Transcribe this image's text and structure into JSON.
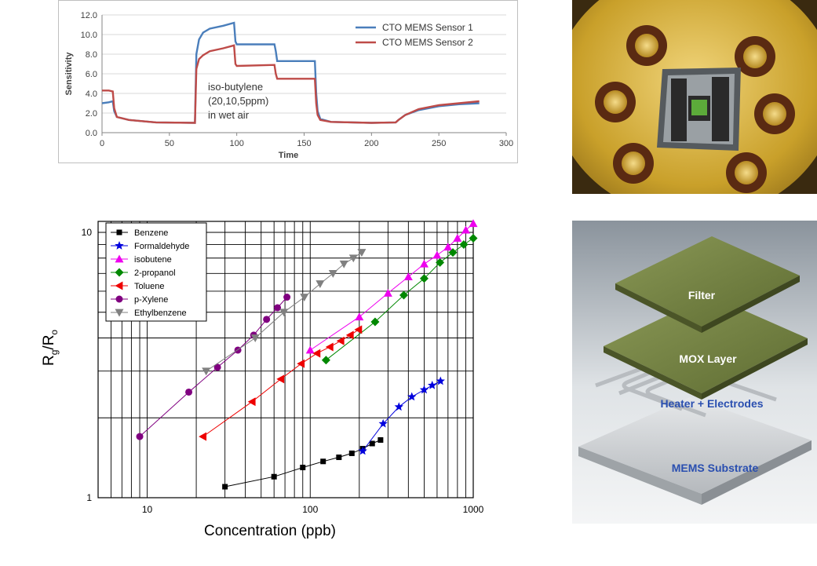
{
  "colors": {
    "sensor1": "#4a7ebb",
    "sensor2": "#be4b48",
    "benzene": "#000000",
    "formaldehyde": "#0000dd",
    "isobutene": "#ee00ee",
    "propanol": "#008800",
    "toluene": "#ee0000",
    "xylene": "#800080",
    "ethylbenzene": "#808080",
    "gold": "#c9a02a",
    "layer_green": "#6f7f3f"
  },
  "chart_data": [
    {
      "type": "line",
      "xlabel": "Time",
      "ylabel": "Sensitivity",
      "xlim": [
        0,
        300
      ],
      "ylim": [
        0,
        12
      ],
      "x_ticks": [
        "0",
        "50",
        "100",
        "150",
        "200",
        "250",
        "300"
      ],
      "y_ticks": [
        "0.0",
        "2.0",
        "4.0",
        "6.0",
        "8.0",
        "10.0",
        "12.0"
      ],
      "grid": true,
      "legend_position": "top-right",
      "annotation": [
        "iso-butylene",
        "(20,10,5ppm)",
        "in wet air"
      ],
      "series": [
        {
          "name": "CTO MEMS Sensor 1",
          "color_key": "sensor1",
          "points": [
            [
              0,
              3.0
            ],
            [
              5,
              3.1
            ],
            [
              8,
              3.2
            ],
            [
              9,
              2.2
            ],
            [
              11,
              1.6
            ],
            [
              20,
              1.3
            ],
            [
              40,
              1.05
            ],
            [
              69,
              1.0
            ],
            [
              70,
              8.0
            ],
            [
              72,
              9.5
            ],
            [
              75,
              10.2
            ],
            [
              80,
              10.6
            ],
            [
              90,
              10.9
            ],
            [
              98,
              11.2
            ],
            [
              99,
              9.3
            ],
            [
              100,
              9.0
            ],
            [
              128,
              9.0
            ],
            [
              129,
              8.3
            ],
            [
              130,
              7.3
            ],
            [
              158,
              7.3
            ],
            [
              159,
              4.0
            ],
            [
              160,
              2.2
            ],
            [
              162,
              1.4
            ],
            [
              170,
              1.1
            ],
            [
              200,
              1.0
            ],
            [
              218,
              1.05
            ],
            [
              220,
              1.3
            ],
            [
              225,
              1.8
            ],
            [
              235,
              2.3
            ],
            [
              250,
              2.7
            ],
            [
              265,
              2.9
            ],
            [
              280,
              3.0
            ]
          ]
        },
        {
          "name": "CTO MEMS Sensor 2",
          "color_key": "sensor2",
          "points": [
            [
              0,
              4.3
            ],
            [
              5,
              4.3
            ],
            [
              8,
              4.2
            ],
            [
              9,
              2.5
            ],
            [
              11,
              1.6
            ],
            [
              20,
              1.3
            ],
            [
              40,
              1.05
            ],
            [
              69,
              1.0
            ],
            [
              70,
              6.5
            ],
            [
              72,
              7.5
            ],
            [
              75,
              7.9
            ],
            [
              80,
              8.3
            ],
            [
              90,
              8.6
            ],
            [
              98,
              8.9
            ],
            [
              99,
              7.0
            ],
            [
              100,
              6.8
            ],
            [
              128,
              6.9
            ],
            [
              129,
              6.0
            ],
            [
              130,
              5.5
            ],
            [
              158,
              5.5
            ],
            [
              159,
              3.0
            ],
            [
              160,
              1.8
            ],
            [
              162,
              1.3
            ],
            [
              170,
              1.1
            ],
            [
              200,
              1.0
            ],
            [
              218,
              1.05
            ],
            [
              220,
              1.3
            ],
            [
              225,
              1.8
            ],
            [
              235,
              2.4
            ],
            [
              250,
              2.8
            ],
            [
              265,
              3.0
            ],
            [
              280,
              3.2
            ]
          ]
        }
      ]
    },
    {
      "type": "scatter",
      "xlabel": "Concentration (ppb)",
      "ylabel_main": "R",
      "ylabel_sub1": "g",
      "ylabel_mid": "/R",
      "ylabel_sub2": "o",
      "x_scale": "log",
      "y_scale": "log",
      "xlim": [
        5,
        1000
      ],
      "ylim": [
        1,
        11
      ],
      "x_tick_labels": [
        "10",
        "100",
        "1000"
      ],
      "y_tick_labels": [
        "1",
        "10"
      ],
      "grid": true,
      "legend_position": "top-left",
      "series": [
        {
          "name": "Benzene",
          "marker": "square",
          "color_key": "benzene",
          "x": [
            30,
            60,
            90,
            120,
            150,
            180,
            210,
            240,
            270
          ],
          "y": [
            1.1,
            1.2,
            1.3,
            1.37,
            1.42,
            1.47,
            1.53,
            1.6,
            1.65
          ]
        },
        {
          "name": "Formaldehyde",
          "marker": "star",
          "color_key": "formaldehyde",
          "x": [
            210,
            280,
            350,
            420,
            500,
            560,
            630
          ],
          "y": [
            1.5,
            1.9,
            2.2,
            2.4,
            2.55,
            2.65,
            2.75
          ]
        },
        {
          "name": "isobutene",
          "marker": "triangle-up",
          "color_key": "isobutene",
          "x": [
            100,
            200,
            300,
            400,
            500,
            600,
            700,
            800,
            900,
            1000
          ],
          "y": [
            3.6,
            4.8,
            5.9,
            6.8,
            7.6,
            8.2,
            8.8,
            9.5,
            10.2,
            10.8
          ]
        },
        {
          "name": "2-propanol",
          "marker": "diamond",
          "color_key": "propanol",
          "x": [
            125,
            250,
            375,
            500,
            625,
            750,
            875,
            1000
          ],
          "y": [
            3.3,
            4.6,
            5.8,
            6.7,
            7.7,
            8.4,
            9.0,
            9.5
          ]
        },
        {
          "name": "Toluene",
          "marker": "triangle-left",
          "color_key": "toluene",
          "x": [
            22,
            44,
            66,
            88,
            110,
            132,
            154,
            176,
            198
          ],
          "y": [
            1.7,
            2.3,
            2.8,
            3.2,
            3.5,
            3.7,
            3.9,
            4.1,
            4.3
          ]
        },
        {
          "name": "p-Xylene",
          "marker": "circle",
          "color_key": "xylene",
          "x": [
            9,
            18,
            27,
            36,
            45,
            54,
            63,
            72
          ],
          "y": [
            1.7,
            2.5,
            3.1,
            3.6,
            4.1,
            4.7,
            5.2,
            5.7
          ]
        },
        {
          "name": "Ethylbenzene",
          "marker": "triangle-down",
          "color_key": "ethylbenzene",
          "x": [
            23,
            46,
            69,
            92,
            115,
            138,
            161,
            184,
            207
          ],
          "y": [
            3.0,
            4.0,
            5.0,
            5.7,
            6.4,
            7.0,
            7.6,
            8.0,
            8.4
          ]
        }
      ]
    }
  ],
  "layers": {
    "filter": "Filter",
    "mox": "MOX Layer",
    "heater": "Heater + Electrodes",
    "substrate": "MEMS Substrate"
  }
}
